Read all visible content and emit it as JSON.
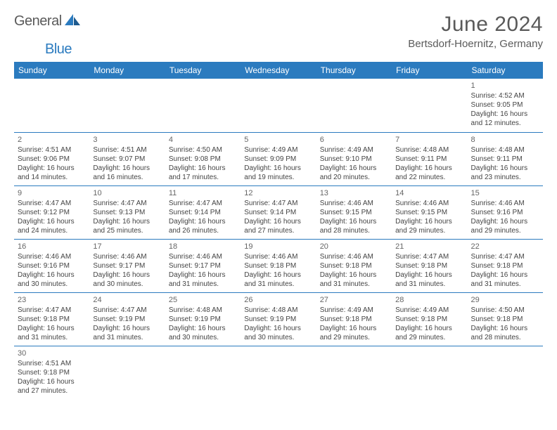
{
  "logo": {
    "text1": "General",
    "text2": "Blue"
  },
  "title": "June 2024",
  "location": "Bertsdorf-Hoernitz, Germany",
  "colors": {
    "header_bg": "#2b7bbf",
    "header_text": "#ffffff",
    "border": "#2b7bbf",
    "text": "#444444",
    "title_text": "#5a5a5a",
    "page_bg": "#ffffff"
  },
  "weekdays": [
    "Sunday",
    "Monday",
    "Tuesday",
    "Wednesday",
    "Thursday",
    "Friday",
    "Saturday"
  ],
  "weeks": [
    [
      null,
      null,
      null,
      null,
      null,
      null,
      {
        "n": "1",
        "sr": "Sunrise: 4:52 AM",
        "ss": "Sunset: 9:05 PM",
        "dl": "Daylight: 16 hours and 12 minutes."
      }
    ],
    [
      {
        "n": "2",
        "sr": "Sunrise: 4:51 AM",
        "ss": "Sunset: 9:06 PM",
        "dl": "Daylight: 16 hours and 14 minutes."
      },
      {
        "n": "3",
        "sr": "Sunrise: 4:51 AM",
        "ss": "Sunset: 9:07 PM",
        "dl": "Daylight: 16 hours and 16 minutes."
      },
      {
        "n": "4",
        "sr": "Sunrise: 4:50 AM",
        "ss": "Sunset: 9:08 PM",
        "dl": "Daylight: 16 hours and 17 minutes."
      },
      {
        "n": "5",
        "sr": "Sunrise: 4:49 AM",
        "ss": "Sunset: 9:09 PM",
        "dl": "Daylight: 16 hours and 19 minutes."
      },
      {
        "n": "6",
        "sr": "Sunrise: 4:49 AM",
        "ss": "Sunset: 9:10 PM",
        "dl": "Daylight: 16 hours and 20 minutes."
      },
      {
        "n": "7",
        "sr": "Sunrise: 4:48 AM",
        "ss": "Sunset: 9:11 PM",
        "dl": "Daylight: 16 hours and 22 minutes."
      },
      {
        "n": "8",
        "sr": "Sunrise: 4:48 AM",
        "ss": "Sunset: 9:11 PM",
        "dl": "Daylight: 16 hours and 23 minutes."
      }
    ],
    [
      {
        "n": "9",
        "sr": "Sunrise: 4:47 AM",
        "ss": "Sunset: 9:12 PM",
        "dl": "Daylight: 16 hours and 24 minutes."
      },
      {
        "n": "10",
        "sr": "Sunrise: 4:47 AM",
        "ss": "Sunset: 9:13 PM",
        "dl": "Daylight: 16 hours and 25 minutes."
      },
      {
        "n": "11",
        "sr": "Sunrise: 4:47 AM",
        "ss": "Sunset: 9:14 PM",
        "dl": "Daylight: 16 hours and 26 minutes."
      },
      {
        "n": "12",
        "sr": "Sunrise: 4:47 AM",
        "ss": "Sunset: 9:14 PM",
        "dl": "Daylight: 16 hours and 27 minutes."
      },
      {
        "n": "13",
        "sr": "Sunrise: 4:46 AM",
        "ss": "Sunset: 9:15 PM",
        "dl": "Daylight: 16 hours and 28 minutes."
      },
      {
        "n": "14",
        "sr": "Sunrise: 4:46 AM",
        "ss": "Sunset: 9:15 PM",
        "dl": "Daylight: 16 hours and 29 minutes."
      },
      {
        "n": "15",
        "sr": "Sunrise: 4:46 AM",
        "ss": "Sunset: 9:16 PM",
        "dl": "Daylight: 16 hours and 29 minutes."
      }
    ],
    [
      {
        "n": "16",
        "sr": "Sunrise: 4:46 AM",
        "ss": "Sunset: 9:16 PM",
        "dl": "Daylight: 16 hours and 30 minutes."
      },
      {
        "n": "17",
        "sr": "Sunrise: 4:46 AM",
        "ss": "Sunset: 9:17 PM",
        "dl": "Daylight: 16 hours and 30 minutes."
      },
      {
        "n": "18",
        "sr": "Sunrise: 4:46 AM",
        "ss": "Sunset: 9:17 PM",
        "dl": "Daylight: 16 hours and 31 minutes."
      },
      {
        "n": "19",
        "sr": "Sunrise: 4:46 AM",
        "ss": "Sunset: 9:18 PM",
        "dl": "Daylight: 16 hours and 31 minutes."
      },
      {
        "n": "20",
        "sr": "Sunrise: 4:46 AM",
        "ss": "Sunset: 9:18 PM",
        "dl": "Daylight: 16 hours and 31 minutes."
      },
      {
        "n": "21",
        "sr": "Sunrise: 4:47 AM",
        "ss": "Sunset: 9:18 PM",
        "dl": "Daylight: 16 hours and 31 minutes."
      },
      {
        "n": "22",
        "sr": "Sunrise: 4:47 AM",
        "ss": "Sunset: 9:18 PM",
        "dl": "Daylight: 16 hours and 31 minutes."
      }
    ],
    [
      {
        "n": "23",
        "sr": "Sunrise: 4:47 AM",
        "ss": "Sunset: 9:18 PM",
        "dl": "Daylight: 16 hours and 31 minutes."
      },
      {
        "n": "24",
        "sr": "Sunrise: 4:47 AM",
        "ss": "Sunset: 9:19 PM",
        "dl": "Daylight: 16 hours and 31 minutes."
      },
      {
        "n": "25",
        "sr": "Sunrise: 4:48 AM",
        "ss": "Sunset: 9:19 PM",
        "dl": "Daylight: 16 hours and 30 minutes."
      },
      {
        "n": "26",
        "sr": "Sunrise: 4:48 AM",
        "ss": "Sunset: 9:19 PM",
        "dl": "Daylight: 16 hours and 30 minutes."
      },
      {
        "n": "27",
        "sr": "Sunrise: 4:49 AM",
        "ss": "Sunset: 9:18 PM",
        "dl": "Daylight: 16 hours and 29 minutes."
      },
      {
        "n": "28",
        "sr": "Sunrise: 4:49 AM",
        "ss": "Sunset: 9:18 PM",
        "dl": "Daylight: 16 hours and 29 minutes."
      },
      {
        "n": "29",
        "sr": "Sunrise: 4:50 AM",
        "ss": "Sunset: 9:18 PM",
        "dl": "Daylight: 16 hours and 28 minutes."
      }
    ],
    [
      {
        "n": "30",
        "sr": "Sunrise: 4:51 AM",
        "ss": "Sunset: 9:18 PM",
        "dl": "Daylight: 16 hours and 27 minutes."
      },
      null,
      null,
      null,
      null,
      null,
      null
    ]
  ]
}
